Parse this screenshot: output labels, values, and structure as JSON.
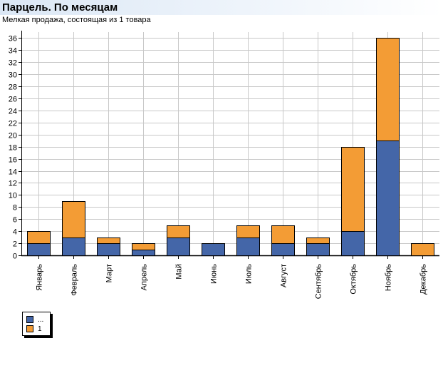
{
  "header": {
    "title": "Парцель. По месяцам",
    "subtitle": "Мелкая продажа, состоящая из 1 товара"
  },
  "colors": {
    "series_blue": "#4466a8",
    "series_orange": "#f39c35",
    "grid": "#c8c8c8",
    "header_bg": "#dbe7f5"
  },
  "chart_data": {
    "type": "bar",
    "stacked": true,
    "categories": [
      "Январь",
      "Февраль",
      "Март",
      "Апрель",
      "Май",
      "Июнь",
      "Июль",
      "Август",
      "Сентябрь",
      "Октябрь",
      "Ноябрь",
      "Декабрь"
    ],
    "series": [
      {
        "name": "...",
        "color": "#4466a8",
        "values": [
          2,
          3,
          2,
          1,
          3,
          2,
          3,
          2,
          2,
          4,
          19,
          0
        ]
      },
      {
        "name": "1",
        "color": "#f39c35",
        "values": [
          2,
          6,
          1,
          1,
          2,
          0,
          2,
          3,
          1,
          14,
          17,
          2
        ]
      }
    ],
    "ylim": [
      0,
      36
    ],
    "ytick_step": 2,
    "grid": true,
    "legend_position": "bottom-left"
  }
}
